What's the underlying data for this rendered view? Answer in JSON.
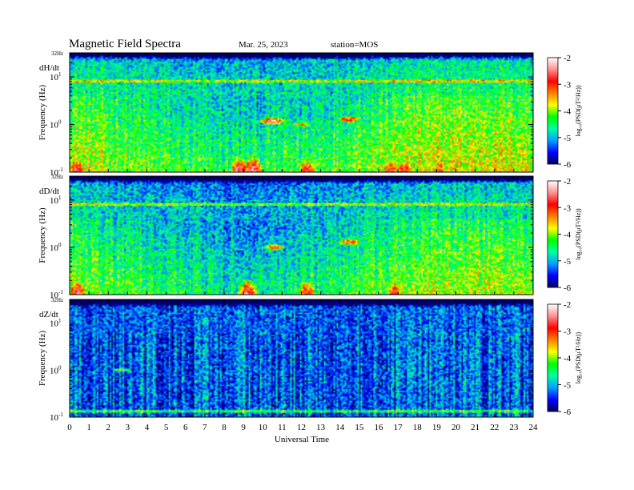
{
  "header": {
    "title": "Magnetic  Field  Spectra",
    "date": "Mar. 25, 2023",
    "station": "station=MOS"
  },
  "chart_data": {
    "type": "heatmap",
    "title": "Magnetic  Field  Spectra",
    "xlabel": "Universal Time",
    "xlim": [
      0,
      24
    ],
    "x_ticks": [
      "0",
      "1",
      "2",
      "3",
      "4",
      "5",
      "6",
      "7",
      "8",
      "9",
      "10",
      "11",
      "12",
      "13",
      "14",
      "15",
      "16",
      "17",
      "18",
      "19",
      "20",
      "21",
      "22",
      "23",
      "24"
    ],
    "ylabel": "Frequency  (Hz)",
    "y_scale": "log",
    "ylim_hz": [
      0.1,
      32
    ],
    "y_top_label": "32Hz",
    "y_ticks": [
      {
        "base": "10",
        "exp": "-1"
      },
      {
        "base": "10",
        "exp": "0"
      },
      {
        "base": "10",
        "exp": "1"
      }
    ],
    "colorbar": {
      "label": "log₁₀(PSD(μT²/Hz))",
      "min": -6,
      "max": -2,
      "ticks": [
        "-2",
        "-3",
        "-4",
        "-5",
        "-6"
      ],
      "colors": [
        "#000060",
        "#0000ff",
        "#00a0ff",
        "#00ffa0",
        "#00ff00",
        "#ffff00",
        "#ff8000",
        "#ff0000",
        "#ff9090",
        "#ffffff"
      ]
    },
    "panels": [
      {
        "label": "dH/dt",
        "background_level": -4.6,
        "line_hz": 8,
        "low_freq_bursts": [
          {
            "t": 0.3,
            "level": -2.6
          },
          {
            "t": 8.8,
            "level": -2.5
          },
          {
            "t": 9.5,
            "level": -2.4
          },
          {
            "t": 12.3,
            "level": -2.8
          },
          {
            "t": 16.6,
            "level": -2.9
          },
          {
            "t": 17.3,
            "level": -3.0
          },
          {
            "t": 19.2,
            "level": -3.1
          }
        ],
        "mid_freq_bursts": [
          {
            "t": 10.5,
            "hz": 1.2,
            "level": -2.6
          },
          {
            "t": 12.0,
            "hz": 1.0,
            "level": -3.5
          },
          {
            "t": 14.5,
            "hz": 1.3,
            "level": -2.8
          }
        ]
      },
      {
        "label": "dD/dt",
        "background_level": -4.8,
        "line_hz": 8,
        "low_freq_bursts": [
          {
            "t": 0.4,
            "level": -2.7
          },
          {
            "t": 9.2,
            "level": -2.5
          },
          {
            "t": 12.3,
            "level": -2.9
          },
          {
            "t": 16.8,
            "level": -3.0
          }
        ],
        "mid_freq_bursts": [
          {
            "t": 10.6,
            "hz": 1.0,
            "level": -3.2
          },
          {
            "t": 14.5,
            "hz": 1.3,
            "level": -2.9
          }
        ]
      },
      {
        "label": "dZ/dt",
        "background_level": -5.3,
        "line_hz": 0.13,
        "low_freq_bursts": [],
        "mid_freq_bursts": [
          {
            "t": 2.7,
            "hz": 1.0,
            "level": -4.2
          }
        ]
      }
    ]
  }
}
